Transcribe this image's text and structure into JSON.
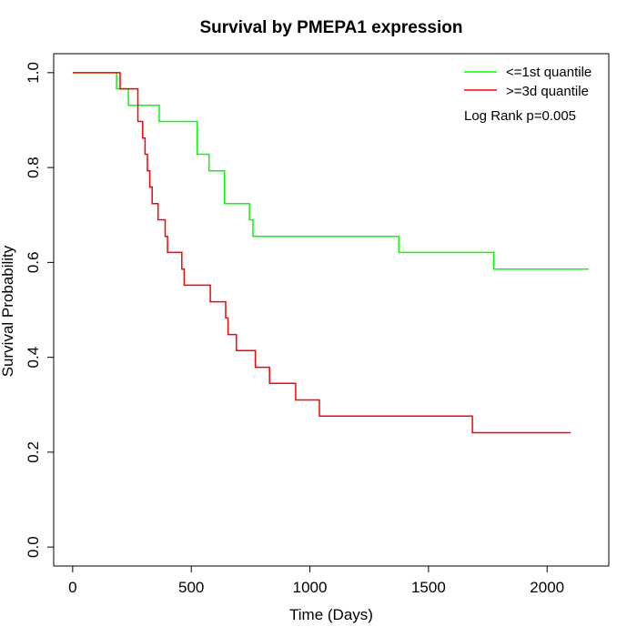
{
  "chart_data": {
    "type": "line",
    "title": "Survival by PMEPA1 expression",
    "xlabel": "Time (Days)",
    "ylabel": "Survival Probability",
    "xlim": [
      -80,
      2260
    ],
    "ylim": [
      -0.04,
      1.04
    ],
    "x_ticks": [
      0,
      500,
      1000,
      1500,
      2000
    ],
    "y_ticks": [
      0.0,
      0.2,
      0.4,
      0.6,
      0.8,
      1.0
    ],
    "x_tick_labels": [
      "0",
      "500",
      "1000",
      "1500",
      "2000"
    ],
    "y_tick_labels": [
      "0.0",
      "0.2",
      "0.4",
      "0.6",
      "0.8",
      "1.0"
    ],
    "grid": false,
    "legend_position": "top-right",
    "annotation": "Log Rank p=0.005",
    "series": [
      {
        "name": "<=1st quantile",
        "color": "#00ff00",
        "x": [
          0,
          185,
          235,
          365,
          525,
          575,
          640,
          745,
          760,
          1375,
          1775,
          2175
        ],
        "y": [
          1.0,
          0.966,
          0.931,
          0.897,
          0.828,
          0.793,
          0.724,
          0.69,
          0.655,
          0.621,
          0.586,
          0.586
        ]
      },
      {
        "name": ">=3d quantile",
        "color": "#ff0000",
        "x": [
          0,
          200,
          230,
          275,
          295,
          305,
          315,
          325,
          335,
          345,
          360,
          375,
          390,
          400,
          460,
          470,
          580,
          645,
          655,
          690,
          770,
          830,
          940,
          1040,
          1685,
          2100
        ],
        "y": [
          1.0,
          0.966,
          0.966,
          0.897,
          0.862,
          0.828,
          0.793,
          0.759,
          0.724,
          0.724,
          0.69,
          0.69,
          0.655,
          0.621,
          0.586,
          0.552,
          0.517,
          0.483,
          0.448,
          0.414,
          0.379,
          0.345,
          0.31,
          0.276,
          0.241,
          0.241
        ]
      }
    ]
  }
}
